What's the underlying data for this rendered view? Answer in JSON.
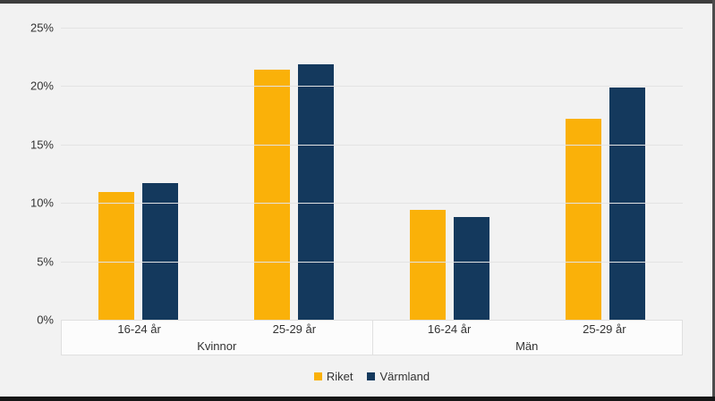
{
  "chart_data": {
    "type": "bar",
    "title": "",
    "ylim": [
      0,
      25
    ],
    "grid": true,
    "legend_position": "bottom",
    "y_axis": {
      "tick_labels": [
        "0%",
        "5%",
        "10%",
        "15%",
        "20%",
        "25%"
      ],
      "tick_values": [
        0,
        5,
        10,
        15,
        20,
        25
      ]
    },
    "groups": [
      {
        "label": "Kvinnor",
        "categories": [
          "16-24 år",
          "25-29 år"
        ]
      },
      {
        "label": "Män",
        "categories": [
          "16-24 år",
          "25-29 år"
        ]
      }
    ],
    "categories": [
      "Kvinnor 16-24 år",
      "Kvinnor 25-29 år",
      "Män 16-24 år",
      "Män 25-29 år"
    ],
    "series": [
      {
        "name": "Riket",
        "color": "#FAB109",
        "values": [
          10.9,
          21.4,
          9.4,
          17.2
        ]
      },
      {
        "name": "Värmland",
        "color": "#14395D",
        "values": [
          11.7,
          21.9,
          8.8,
          19.9
        ]
      }
    ]
  },
  "colors": {
    "background": "#f2f2f2",
    "gridline": "#e3e3e3",
    "axis_band_background": "#fcfcfc",
    "axis_band_border": "#e0e0e0",
    "text": "#333333",
    "frame_top": "#3d3d3d",
    "frame_bottom": "#161616",
    "frame_right": "#4d4d4d"
  }
}
